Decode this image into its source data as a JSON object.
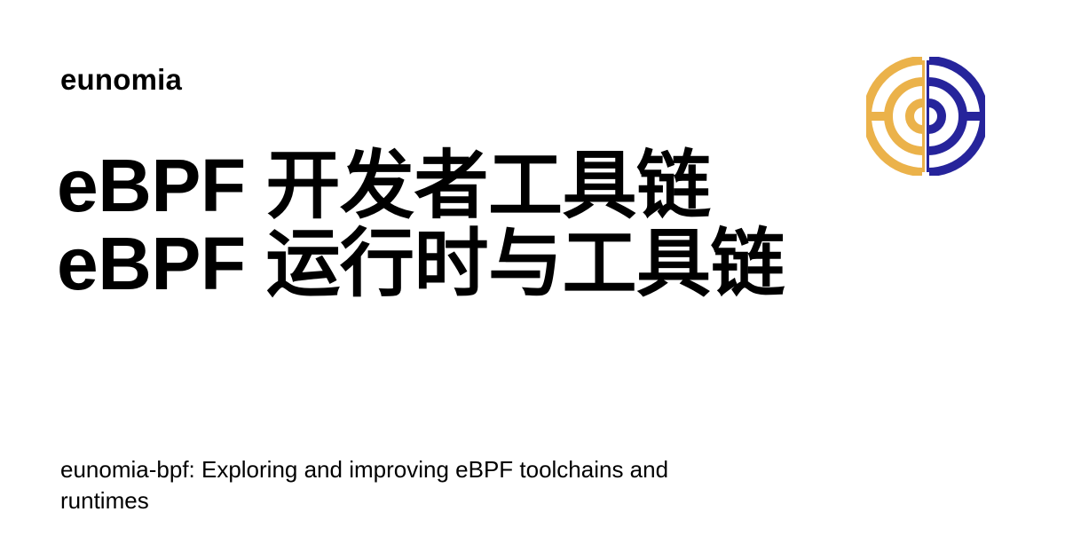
{
  "site": {
    "name": "eunomia"
  },
  "article": {
    "title": "eBPF 开发者工具链 eBPF 运行时与工具链",
    "description": "eunomia-bpf: Exploring and improving eBPF toolchains and runtimes"
  },
  "logo": {
    "icon": "eunomia-logo-icon",
    "colors": {
      "gold": "#EBB24A",
      "navy": "#26249B"
    }
  }
}
